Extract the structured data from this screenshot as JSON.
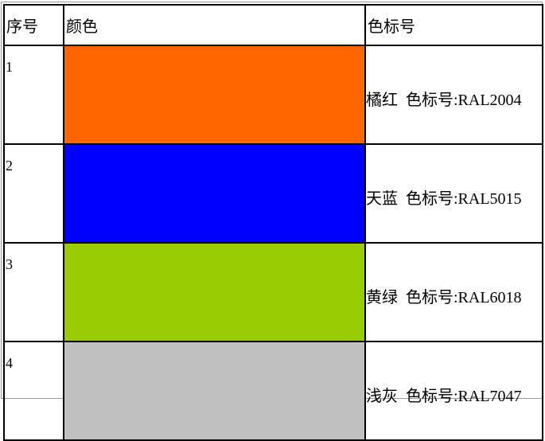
{
  "table": {
    "header": [
      "序号",
      "颜色",
      "色标号"
    ],
    "rows": [
      {
        "index": 1,
        "color": "#ff6600",
        "code": "橘红  色标号:RAL2004"
      },
      {
        "index": 2,
        "color": "#0000ff",
        "code": "天蓝  色标号:RAL5015"
      },
      {
        "index": 3,
        "color": "#99cc00",
        "code": "黄绿  色标号:RAL6018"
      },
      {
        "index": 4,
        "color": "#c0c0c0",
        "code": "浅灰  色标号:RAL7047"
      }
    ]
  }
}
